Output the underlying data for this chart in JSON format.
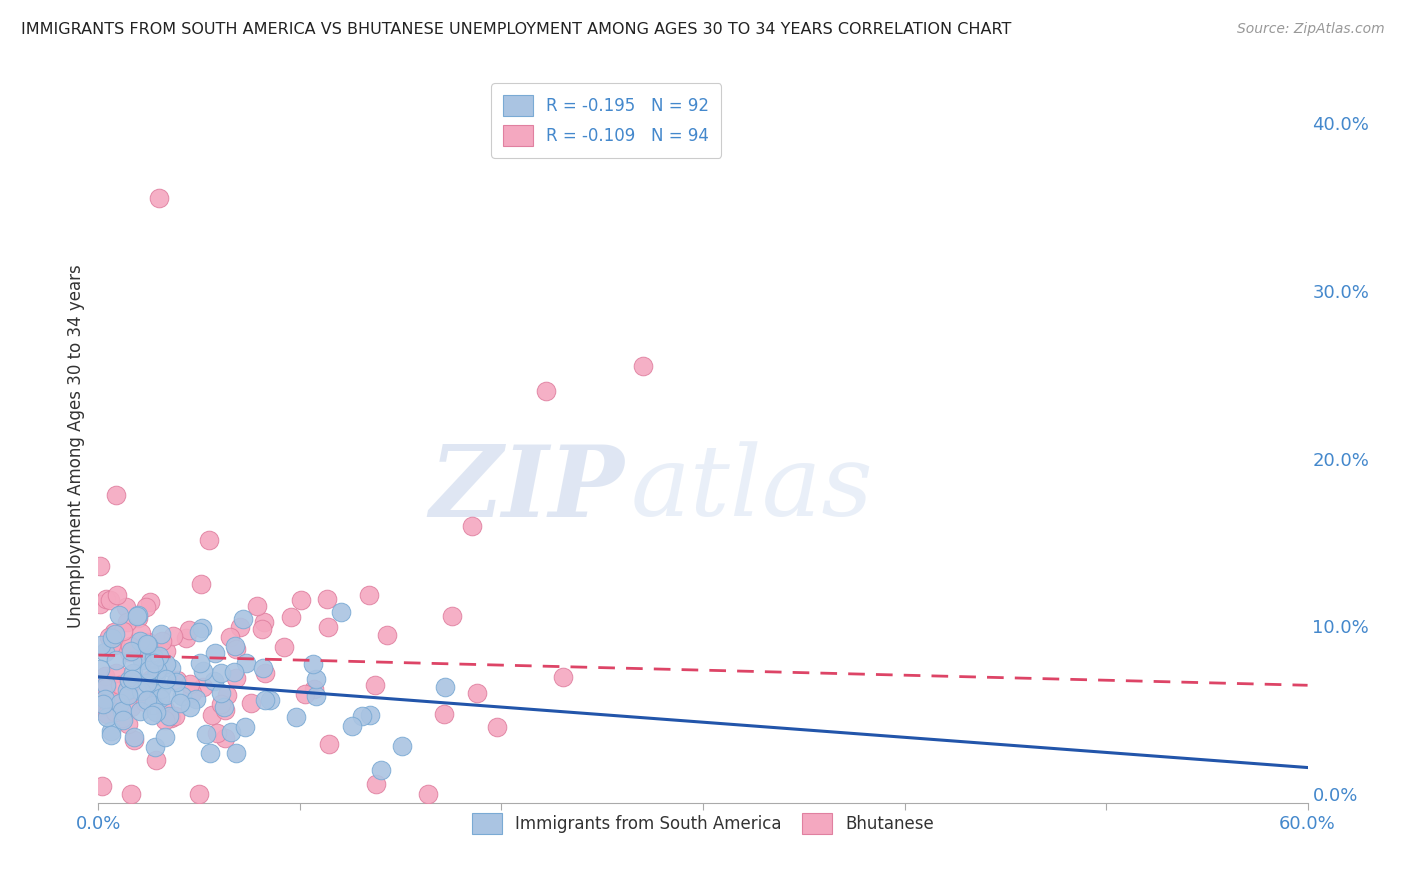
{
  "title": "IMMIGRANTS FROM SOUTH AMERICA VS BHUTANESE UNEMPLOYMENT AMONG AGES 30 TO 34 YEARS CORRELATION CHART",
  "source": "Source: ZipAtlas.com",
  "ylabel": "Unemployment Among Ages 30 to 34 years",
  "legend1_label": "Immigrants from South America",
  "legend2_label": "Bhutanese",
  "R1": -0.195,
  "N1": 92,
  "R2": -0.109,
  "N2": 94,
  "color1": "#aac4e2",
  "color1_edge": "#7aaad4",
  "color2": "#f4a8c0",
  "color2_edge": "#e080a0",
  "line1_color": "#2255aa",
  "line2_color": "#dd4466",
  "xlim": [
    0.0,
    0.6
  ],
  "ylim": [
    -0.005,
    0.42
  ],
  "xticks": [
    0.0,
    0.1,
    0.2,
    0.3,
    0.4,
    0.5,
    0.6
  ],
  "yticks_right": [
    0.0,
    0.1,
    0.2,
    0.3,
    0.4
  ],
  "watermark_zip": "ZIP",
  "watermark_atlas": "atlas",
  "background_color": "#ffffff",
  "grid_color": "#cccccc",
  "line1_intercept": 0.07,
  "line1_slope": -0.09,
  "line2_intercept": 0.083,
  "line2_slope": -0.03
}
